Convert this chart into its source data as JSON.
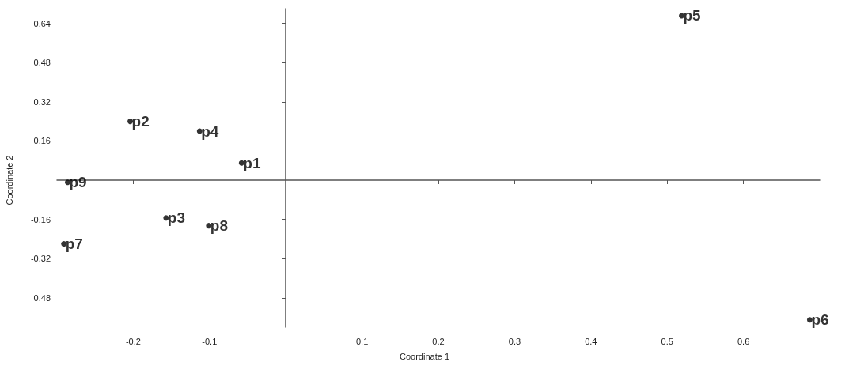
{
  "chart_data": {
    "type": "scatter",
    "xlabel": "Coordinate 1",
    "ylabel": "Coordinate 2",
    "x": [
      -0.058,
      -0.204,
      -0.157,
      -0.113,
      0.519,
      0.687,
      -0.291,
      -0.101,
      -0.286
    ],
    "values": [
      0.07,
      0.24,
      -0.154,
      0.2,
      0.671,
      -0.57,
      -0.26,
      -0.186,
      -0.009
    ],
    "color": "#000000",
    "marker": "circle",
    "grid": false,
    "xlim": [
      -0.3,
      0.7
    ],
    "ylim": [
      -0.6,
      0.7
    ],
    "xticks": [
      -0.2,
      -0.1,
      0.1,
      0.2,
      0.3,
      0.4,
      0.5,
      0.6
    ],
    "yticks": [
      -0.48,
      -0.32,
      -0.16,
      0.16,
      0.32,
      0.48,
      0.64
    ],
    "annotations": [
      {
        "text": "p1",
        "x": -0.058,
        "y": 0.07
      },
      {
        "text": "p2",
        "x": -0.204,
        "y": 0.24
      },
      {
        "text": "p3",
        "x": -0.157,
        "y": -0.154
      },
      {
        "text": "p4",
        "x": -0.113,
        "y": 0.2
      },
      {
        "text": "p5",
        "x": 0.519,
        "y": 0.671
      },
      {
        "text": "p6",
        "x": 0.687,
        "y": -0.57
      },
      {
        "text": "p7",
        "x": -0.291,
        "y": -0.26
      },
      {
        "text": "p8",
        "x": -0.101,
        "y": -0.186
      },
      {
        "text": "p9",
        "x": -0.286,
        "y": -0.009
      }
    ]
  }
}
